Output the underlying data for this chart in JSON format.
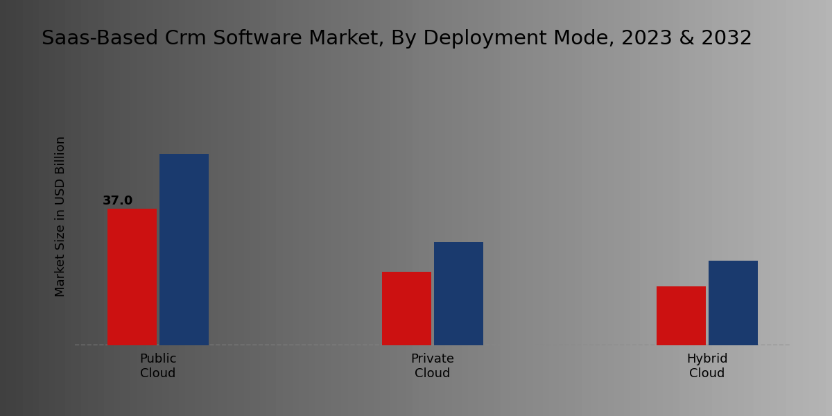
{
  "title": "Saas-Based Crm Software Market, By Deployment Mode, 2023 & 2032",
  "ylabel": "Market Size in USD Billion",
  "categories": [
    "Public\nCloud",
    "Private\nCloud",
    "Hybrid\nCloud"
  ],
  "values_2023": [
    37.0,
    20.0,
    16.0
  ],
  "values_2032": [
    52.0,
    28.0,
    23.0
  ],
  "color_2023": "#cc1111",
  "color_2032": "#1a3a6e",
  "annotation_2023": "37.0",
  "bar_width": 0.18,
  "ylim": [
    0,
    70
  ],
  "bg_color_left": "#d8d8d8",
  "bg_color_right": "#f0f0f0",
  "title_fontsize": 21,
  "label_fontsize": 13,
  "tick_fontsize": 13,
  "legend_fontsize": 14,
  "annotation_fontsize": 13,
  "bottom_bar_color": "#bb0000",
  "bottom_bar_height": 0.038
}
